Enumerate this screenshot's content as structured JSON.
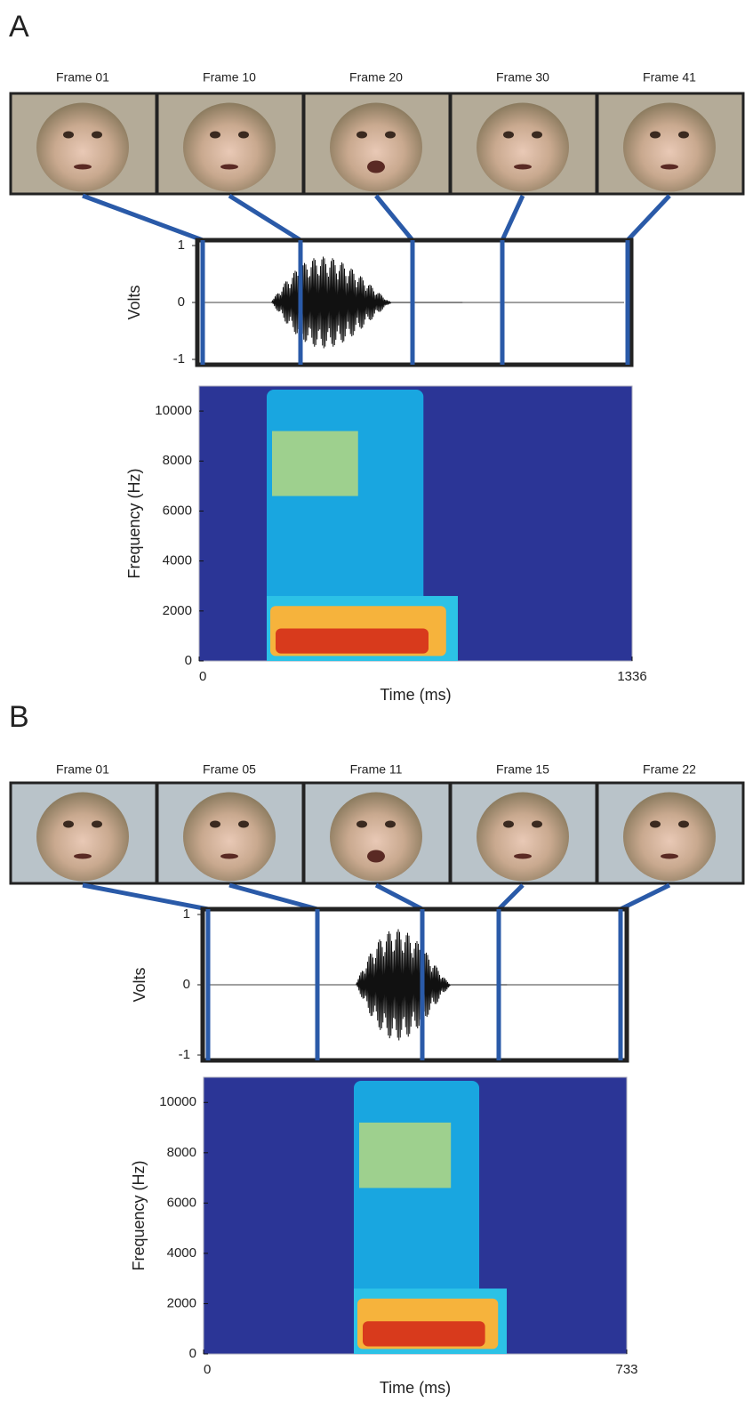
{
  "panels": [
    {
      "label": "A",
      "frames": [
        "Frame 01",
        "Frame 10",
        "Frame 20",
        "Frame 30",
        "Frame 41"
      ],
      "waveform": {
        "ylabel": "Volts",
        "ylim": [
          -1,
          1
        ],
        "yticks": [
          1,
          0,
          -1
        ]
      },
      "spectrogram": {
        "ylabel": "Frequency (Hz)",
        "ylim": [
          0,
          11000
        ],
        "yticks": [
          10000,
          8000,
          6000,
          4000,
          2000,
          0
        ],
        "xlabel": "Time (ms)",
        "xlim": [
          0,
          1336
        ],
        "xticks": [
          0,
          1336
        ]
      }
    },
    {
      "label": "B",
      "frames": [
        "Frame 01",
        "Frame 05",
        "Frame 11",
        "Frame 15",
        "Frame 22"
      ],
      "waveform": {
        "ylabel": "Volts",
        "ylim": [
          -1,
          1
        ],
        "yticks": [
          1,
          0,
          -1
        ]
      },
      "spectrogram": {
        "ylabel": "Frequency (Hz)",
        "ylim": [
          0,
          11000
        ],
        "yticks": [
          10000,
          8000,
          6000,
          4000,
          2000,
          0
        ],
        "xlabel": "Time (ms)",
        "xlim": [
          0,
          733
        ],
        "xticks": [
          0,
          733
        ]
      }
    }
  ]
}
